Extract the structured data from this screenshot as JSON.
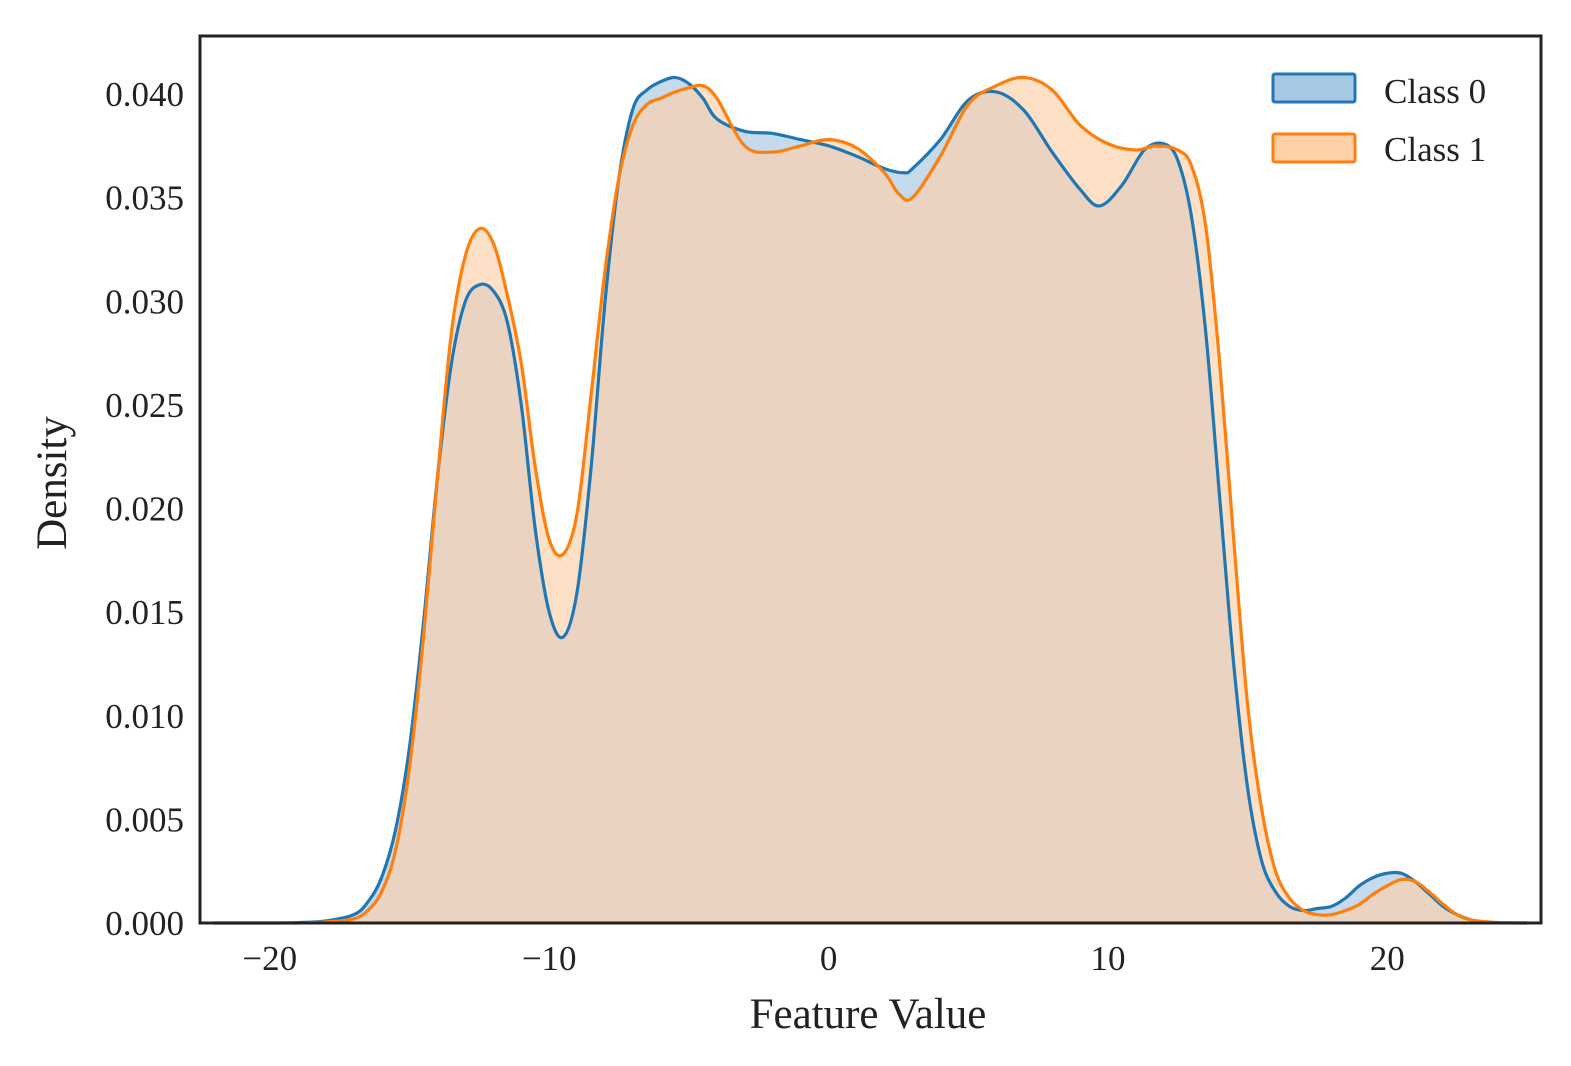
{
  "chart_data": {
    "type": "area",
    "title": "",
    "xlabel": "Feature Value",
    "ylabel": "Density",
    "xlim": [
      -22.5,
      25.5
    ],
    "ylim": [
      0,
      0.0428
    ],
    "xticks": [
      -20,
      -10,
      0,
      10,
      20
    ],
    "xtick_labels": [
      "−20",
      "−10",
      "0",
      "10",
      "20"
    ],
    "yticks": [
      0,
      0.005,
      0.01,
      0.015,
      0.02,
      0.025,
      0.03,
      0.035,
      0.04
    ],
    "ytick_labels": [
      "0.000",
      "0.005",
      "0.010",
      "0.015",
      "0.020",
      "0.025",
      "0.030",
      "0.035",
      "0.040"
    ],
    "grid": false,
    "legend_position": "top-right",
    "series": [
      {
        "name": "Class 0",
        "color": "#1f77b4",
        "fill": "#a6c8e4",
        "x": [
          -22,
          -20,
          -19,
          -18,
          -17,
          -16.5,
          -16,
          -15.5,
          -15,
          -14.5,
          -14,
          -13.5,
          -13,
          -12.5,
          -12,
          -11.5,
          -11,
          -10.5,
          -10,
          -9.5,
          -9,
          -8.5,
          -8,
          -7.5,
          -7,
          -6.5,
          -6,
          -5.5,
          -5,
          -4.5,
          -4,
          -3,
          -2,
          -1,
          0,
          1,
          2,
          2.7,
          3,
          4,
          5,
          6,
          7,
          8,
          9,
          9.7,
          10.5,
          11.3,
          12,
          12.5,
          13,
          13.5,
          14,
          14.5,
          15,
          15.5,
          16,
          16.5,
          17,
          17.5,
          18,
          18.5,
          19,
          19.5,
          20,
          20.5,
          21,
          21.5,
          22,
          22.5,
          23,
          23.5,
          24,
          25
        ],
        "y": [
          0,
          0,
          2e-05,
          0.0001,
          0.0004,
          0.001,
          0.0022,
          0.0045,
          0.0085,
          0.0145,
          0.0215,
          0.027,
          0.03,
          0.0308,
          0.0305,
          0.029,
          0.025,
          0.019,
          0.015,
          0.0138,
          0.016,
          0.022,
          0.03,
          0.036,
          0.0393,
          0.0402,
          0.0406,
          0.0408,
          0.0405,
          0.0398,
          0.0388,
          0.0382,
          0.0381,
          0.0378,
          0.0375,
          0.037,
          0.0364,
          0.0362,
          0.0364,
          0.0378,
          0.0397,
          0.0401,
          0.0392,
          0.0372,
          0.0354,
          0.0346,
          0.0356,
          0.0373,
          0.0376,
          0.0368,
          0.034,
          0.0285,
          0.0205,
          0.0125,
          0.0065,
          0.003,
          0.0015,
          0.0008,
          0.0006,
          0.0007,
          0.0008,
          0.0012,
          0.0018,
          0.0022,
          0.0024,
          0.0024,
          0.002,
          0.0014,
          0.0008,
          0.0004,
          0.00015,
          5e-05,
          1e-05,
          0
        ]
      },
      {
        "name": "Class 1",
        "color": "#ff7f0e",
        "fill": "#fdd0a8",
        "x": [
          -22,
          -20,
          -19,
          -18,
          -17,
          -16.5,
          -16,
          -15.5,
          -15,
          -14.5,
          -14,
          -13.5,
          -13,
          -12.5,
          -12,
          -11.5,
          -11,
          -10.5,
          -10,
          -9.5,
          -9,
          -8.5,
          -8,
          -7.5,
          -7,
          -6.5,
          -6,
          -5.5,
          -5,
          -4.5,
          -4,
          -3,
          -2,
          -1,
          0,
          1,
          2,
          2.5,
          3,
          4,
          5,
          6,
          7,
          8,
          9,
          10,
          11,
          11.7,
          12.5,
          13,
          13.5,
          14,
          14.5,
          15,
          15.5,
          16,
          16.5,
          17,
          17.5,
          18,
          18.5,
          19,
          19.5,
          20,
          20.5,
          21,
          21.5,
          22,
          22.5,
          23,
          24,
          25
        ],
        "y": [
          0,
          0,
          0,
          5e-05,
          0.0002,
          0.0006,
          0.0015,
          0.0035,
          0.0075,
          0.0138,
          0.0215,
          0.0285,
          0.0322,
          0.0335,
          0.0328,
          0.0303,
          0.027,
          0.022,
          0.0185,
          0.0178,
          0.0198,
          0.0255,
          0.0315,
          0.036,
          0.0385,
          0.0395,
          0.0398,
          0.0401,
          0.0403,
          0.0404,
          0.0398,
          0.0375,
          0.0372,
          0.0375,
          0.0378,
          0.0374,
          0.0362,
          0.0352,
          0.035,
          0.037,
          0.0395,
          0.0404,
          0.0408,
          0.0402,
          0.0385,
          0.0376,
          0.0373,
          0.0375,
          0.0373,
          0.0365,
          0.0336,
          0.027,
          0.0185,
          0.0105,
          0.0055,
          0.0025,
          0.0012,
          0.0006,
          0.0004,
          0.0004,
          0.0006,
          0.0009,
          0.0014,
          0.0018,
          0.0021,
          0.002,
          0.0015,
          0.0009,
          0.0004,
          0.00015,
          2e-05,
          0
        ]
      }
    ]
  }
}
